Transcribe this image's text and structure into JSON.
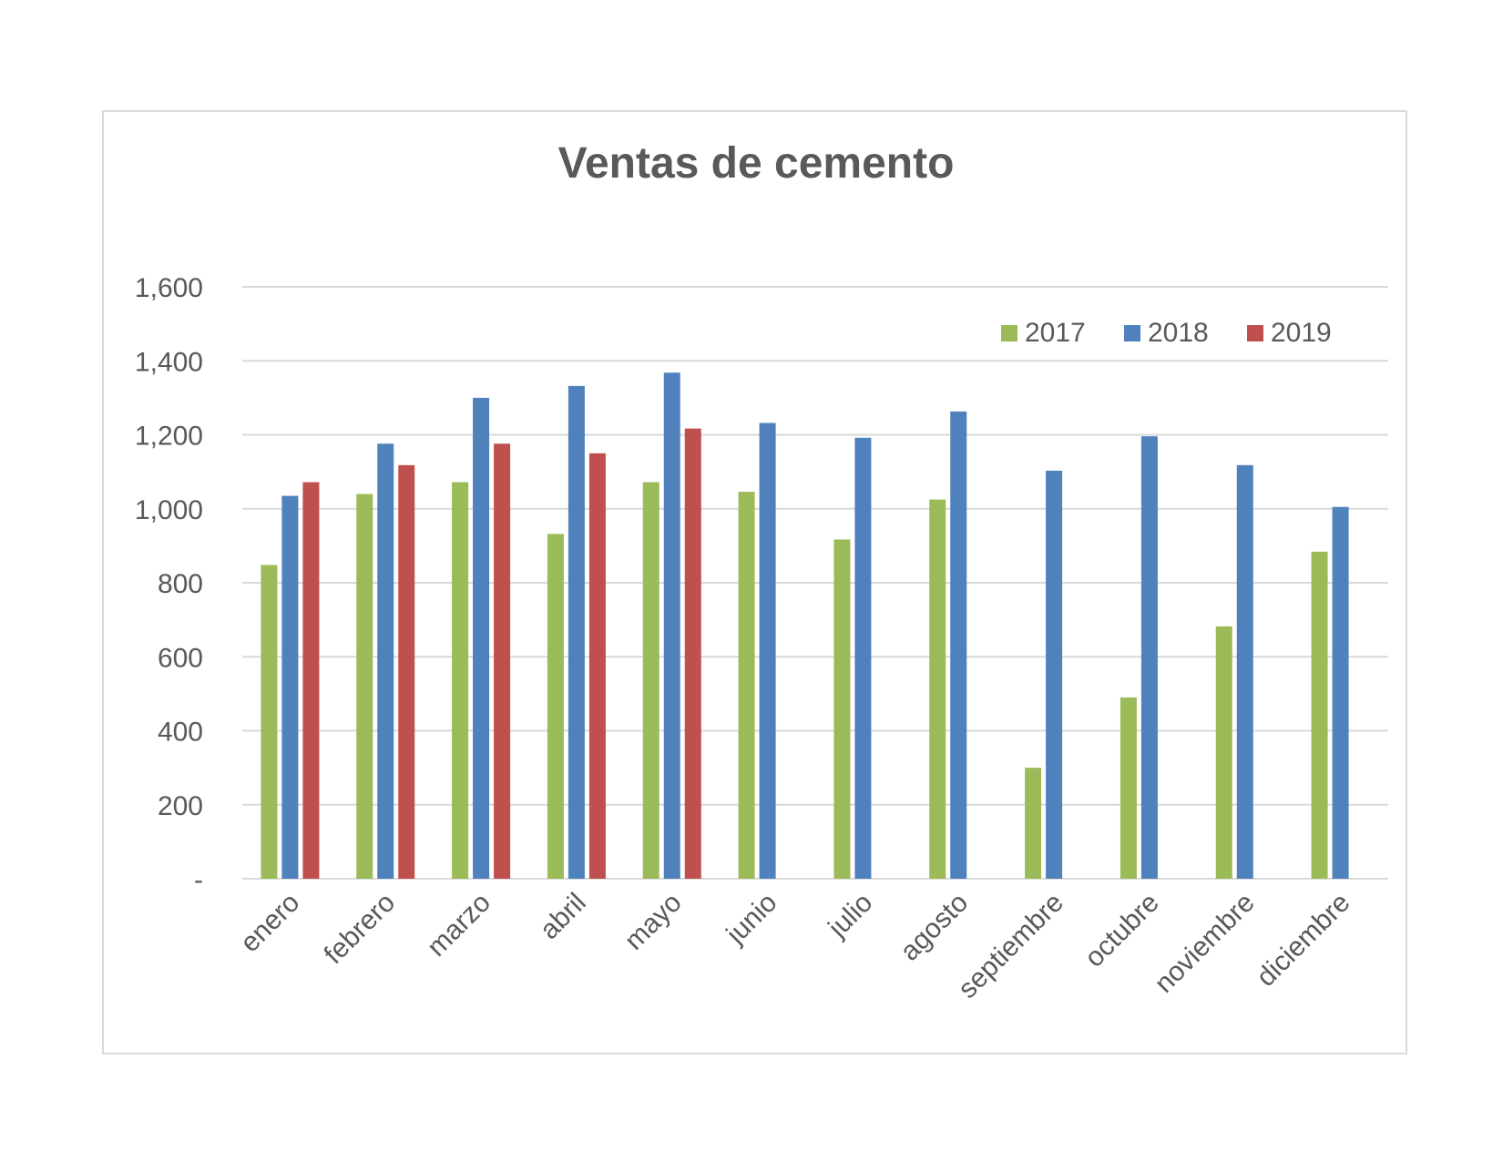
{
  "chart_data": {
    "type": "bar",
    "title": "Ventas de cemento",
    "categories": [
      "enero",
      "febrero",
      "marzo",
      "abril",
      "mayo",
      "junio",
      "julio",
      "agosto",
      "septiembre",
      "octubre",
      "noviembre",
      "diciembre"
    ],
    "series": [
      {
        "name": "2017",
        "color": "#9bbb59",
        "values": [
          848,
          1040,
          1072,
          932,
          1072,
          1046,
          917,
          1025,
          300,
          490,
          682,
          884
        ]
      },
      {
        "name": "2018",
        "color": "#4f81bd",
        "values": [
          1035,
          1176,
          1300,
          1332,
          1368,
          1232,
          1192,
          1263,
          1103,
          1196,
          1118,
          1005
        ]
      },
      {
        "name": "2019",
        "color": "#c0504d",
        "values": [
          1072,
          1118,
          1176,
          1150,
          1217,
          null,
          null,
          null,
          null,
          null,
          null,
          null
        ]
      }
    ],
    "ylim": [
      0,
      1600
    ],
    "yticks": [
      0,
      200,
      400,
      600,
      800,
      1000,
      1200,
      1400,
      1600
    ],
    "ytick_labels": [
      "-",
      "200",
      "400",
      "600",
      "800",
      "1,000",
      "1,200",
      "1,400",
      "1,600"
    ],
    "grid": true,
    "legend_position": "top-right",
    "xlabel": "",
    "ylabel": ""
  }
}
